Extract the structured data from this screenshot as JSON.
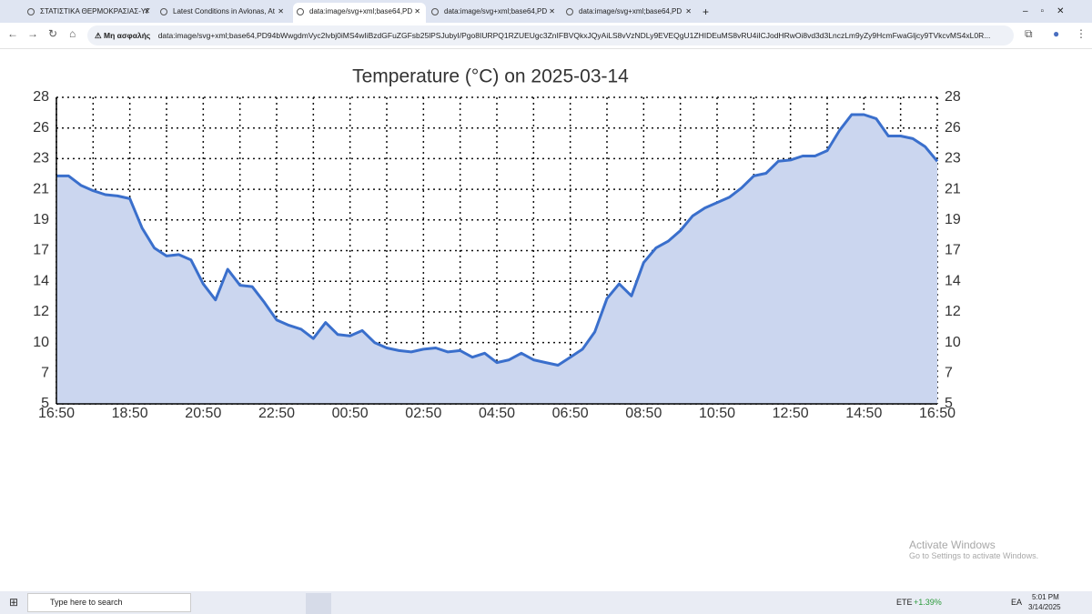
{
  "browser": {
    "tabs": [
      "ΣΤΑΤΙΣΤΙΚΑ ΘΕΡΜΟΚΡΑΣΙΑΣ-ΥΓ",
      "Latest Conditions in Avlonas, At",
      "data:image/svg+xml;base64,PD",
      "data:image/svg+xml;base64,PD",
      "data:image/svg+xml;base64,PD"
    ],
    "security": "Μη ασφαλής",
    "url": "data:image/svg+xml;base64,PD94bWwgdmVyc2lvbj0iMS4wIiBzdGFuZGFsb25lPSJubyI/Pgo8IURPQ1RZUEUgc3ZnIFBVQkxJQyAiLS8vVzNDLy9EVEQgU1ZHIDEuMS8vRU4iICJodHRwOi8vd3d3LnczLm9yZy9HcmFwaGljcy9TVkcvMS4xL0R..."
  },
  "chart_data": {
    "type": "line",
    "title": "Temperature (°C) on 2025-03-14",
    "x": [
      "16:50",
      "17:10",
      "17:30",
      "17:50",
      "18:10",
      "18:30",
      "18:50",
      "19:10",
      "19:30",
      "19:50",
      "20:10",
      "20:30",
      "20:50",
      "21:10",
      "21:30",
      "21:50",
      "22:10",
      "22:30",
      "22:50",
      "23:10",
      "23:30",
      "23:50",
      "00:10",
      "00:30",
      "00:50",
      "01:10",
      "01:30",
      "01:50",
      "02:10",
      "02:30",
      "02:50",
      "03:10",
      "03:30",
      "03:50",
      "04:10",
      "04:30",
      "04:50",
      "05:10",
      "05:30",
      "05:50",
      "06:10",
      "06:30",
      "06:50",
      "07:10",
      "07:30",
      "07:50",
      "08:10",
      "08:30",
      "08:50",
      "09:10",
      "09:30",
      "09:50",
      "10:10",
      "10:30",
      "10:50",
      "11:10",
      "11:30",
      "11:50",
      "12:10",
      "12:30",
      "12:50",
      "13:10",
      "13:30",
      "13:50",
      "14:10",
      "14:30",
      "14:50",
      "15:10",
      "15:30",
      "15:50",
      "16:10",
      "16:30",
      "16:50"
    ],
    "series": [
      {
        "name": "Temperature",
        "color": "#3a6fcc",
        "fill": "#cbd6ef",
        "values": [
          22.1,
          22.1,
          21.4,
          21.0,
          20.7,
          20.6,
          20.4,
          18.2,
          16.7,
          16.1,
          16.2,
          15.8,
          14.0,
          12.8,
          15.1,
          13.9,
          13.8,
          12.6,
          11.3,
          10.9,
          10.6,
          9.9,
          11.1,
          10.2,
          10.1,
          10.5,
          9.6,
          9.2,
          9.0,
          8.9,
          9.1,
          9.2,
          8.9,
          9.0,
          8.5,
          8.8,
          8.1,
          8.3,
          8.8,
          8.3,
          8.1,
          7.9,
          8.5,
          9.1,
          10.4,
          12.9,
          14.0,
          13.1,
          15.6,
          16.7,
          17.2,
          18.0,
          19.1,
          19.7,
          20.1,
          20.5,
          21.2,
          22.1,
          22.3,
          23.2,
          23.3,
          23.6,
          23.6,
          24.0,
          25.5,
          26.7,
          26.7,
          26.4,
          25.1,
          25.1,
          24.9,
          24.3,
          23.2
        ]
      }
    ],
    "xticks": [
      "16:50",
      "18:50",
      "20:50",
      "22:50",
      "00:50",
      "02:50",
      "04:50",
      "06:50",
      "08:50",
      "10:50",
      "12:50",
      "14:50",
      "16:50"
    ],
    "ylim": [
      5,
      28
    ],
    "yticks": [
      5,
      {
        "value": 7.3,
        "label": "7"
      },
      {
        "value": 9.6,
        "label": "10"
      },
      {
        "value": 11.9,
        "label": "12"
      },
      {
        "value": 14.2,
        "label": "14"
      },
      {
        "value": 16.5,
        "label": "17"
      },
      {
        "value": 18.8,
        "label": "19"
      },
      {
        "value": 21.1,
        "label": "21"
      },
      {
        "value": 23.4,
        "label": "23"
      },
      {
        "value": 25.7,
        "label": "26"
      },
      28
    ],
    "grid": true
  },
  "watermark": {
    "title": "Activate Windows",
    "subtitle": "Go to Settings to activate Windows."
  },
  "taskbar": {
    "search": "Type here to search",
    "weather": "ETE",
    "change": "+1.39%",
    "language": "EA",
    "time": "5:01 PM",
    "date": "3/14/2025"
  }
}
